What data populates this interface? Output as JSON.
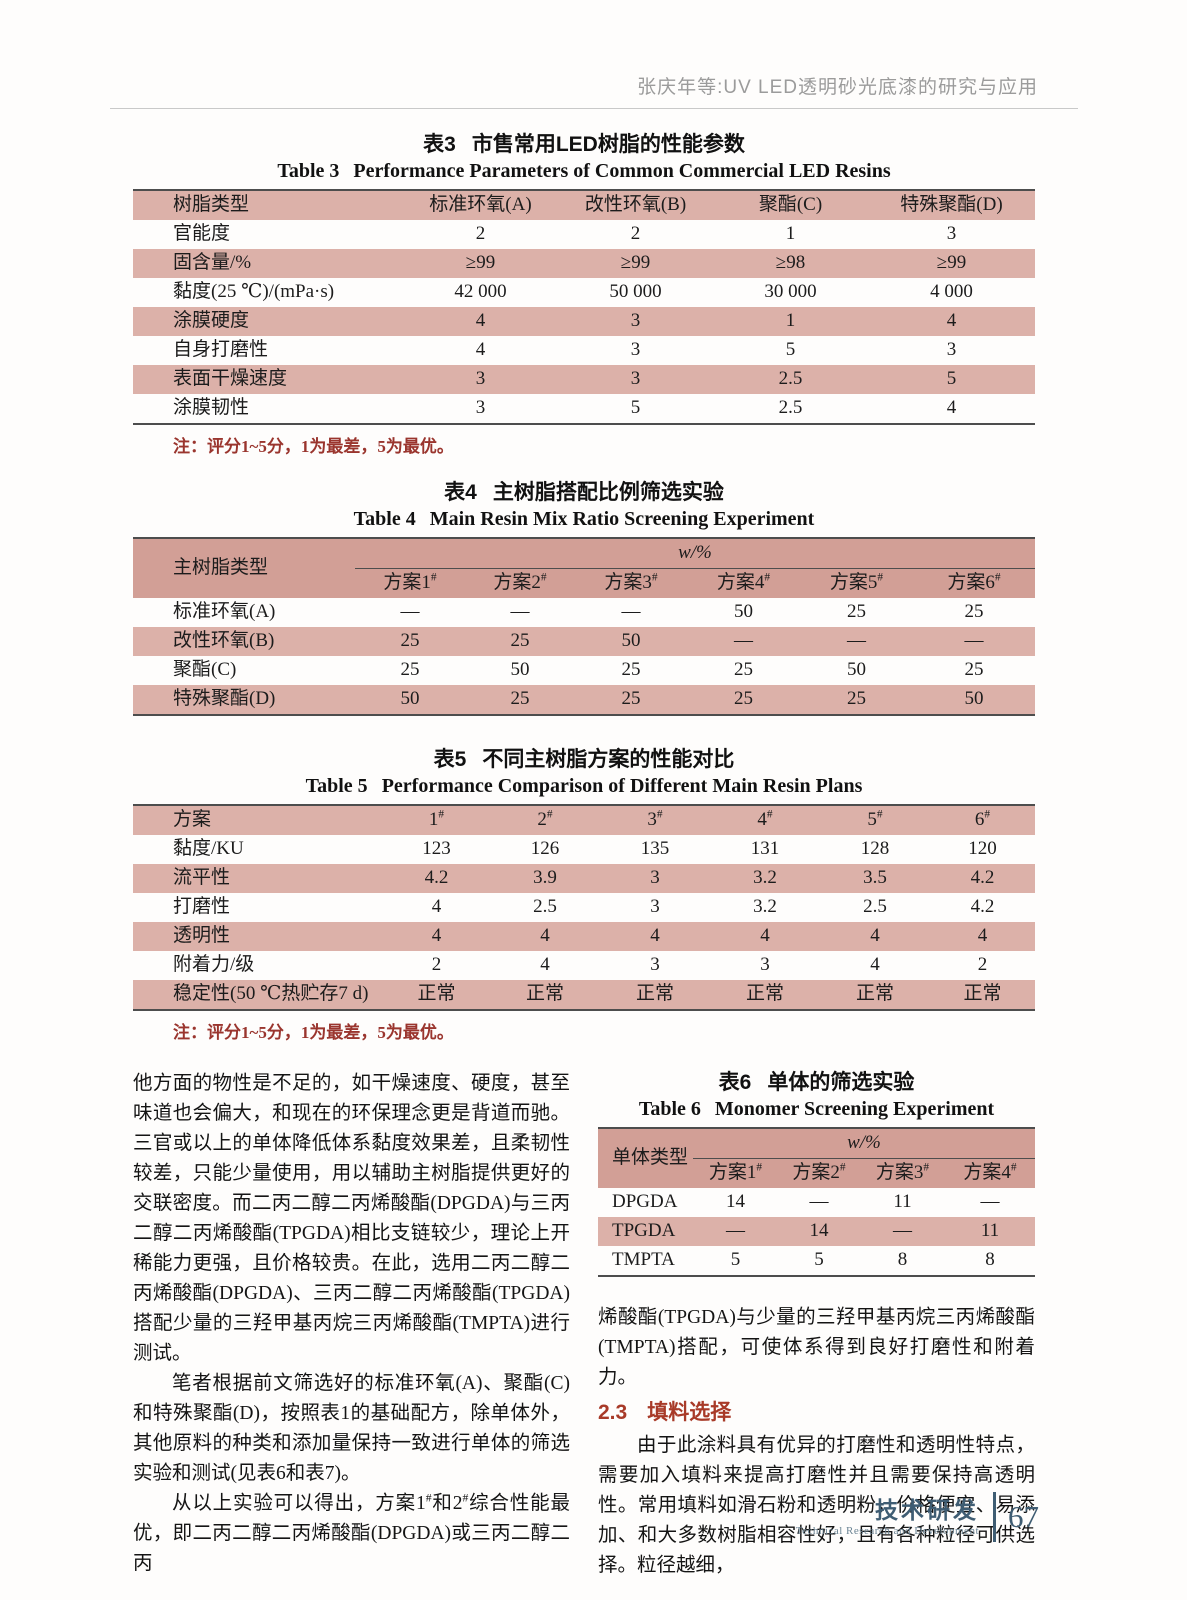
{
  "page_header": {
    "title": "张庆年等:UV LED透明砂光底漆的研究与应用"
  },
  "colors": {
    "row_pink": "#dcb1a9",
    "header_band_pink": "#d29f96",
    "note_red": "#9a352e",
    "section_heading_red": "#a83a28",
    "footer_blue": "#3f5d73",
    "running_head_gray": "#9b9b9b"
  },
  "tables": {
    "table3": {
      "zh_label": "表3",
      "zh_title": "市售常用LED树脂的性能参数",
      "en_label": "Table 3",
      "en_title": "Performance Parameters of Common Commercial LED Resins",
      "header": [
        "树脂类型",
        "标准环氧(A)",
        "改性环氧(B)",
        "聚酯(C)",
        "特殊聚酯(D)"
      ],
      "rows": [
        [
          "官能度",
          "2",
          "2",
          "1",
          "3"
        ],
        [
          "固含量/%",
          "≥99",
          "≥99",
          "≥98",
          "≥99"
        ],
        [
          "黏度(25 ℃)/(mPa·s)",
          "42 000",
          "50 000",
          "30 000",
          "4 000"
        ],
        [
          "涂膜硬度",
          "4",
          "3",
          "1",
          "4"
        ],
        [
          "自身打磨性",
          "4",
          "3",
          "5",
          "3"
        ],
        [
          "表面干燥速度",
          "3",
          "3",
          "2.5",
          "5"
        ],
        [
          "涂膜韧性",
          "3",
          "5",
          "2.5",
          "4"
        ]
      ],
      "note": "注：评分1~5分，1为最差，5为最优。"
    },
    "table4": {
      "zh_label": "表4",
      "zh_title": "主树脂搭配比例筛选实验",
      "en_label": "Table 4",
      "en_title": "Main Resin Mix Ratio Screening Experiment",
      "stub": "主树脂类型",
      "span_label": "w/%",
      "plans": [
        "方案1#",
        "方案2#",
        "方案3#",
        "方案4#",
        "方案5#",
        "方案6#"
      ],
      "rows": [
        [
          "标准环氧(A)",
          "—",
          "—",
          "—",
          "50",
          "25",
          "25"
        ],
        [
          "改性环氧(B)",
          "25",
          "25",
          "50",
          "—",
          "—",
          "—"
        ],
        [
          "聚酯(C)",
          "25",
          "50",
          "25",
          "25",
          "50",
          "25"
        ],
        [
          "特殊聚酯(D)",
          "50",
          "25",
          "25",
          "25",
          "25",
          "50"
        ]
      ]
    },
    "table5": {
      "zh_label": "表5",
      "zh_title": "不同主树脂方案的性能对比",
      "en_label": "Table 5",
      "en_title": "Performance Comparison of Different Main Resin Plans",
      "header": [
        "方案",
        "1#",
        "2#",
        "3#",
        "4#",
        "5#",
        "6#"
      ],
      "rows": [
        [
          "黏度/KU",
          "123",
          "126",
          "135",
          "131",
          "128",
          "120"
        ],
        [
          "流平性",
          "4.2",
          "3.9",
          "3",
          "3.2",
          "3.5",
          "4.2"
        ],
        [
          "打磨性",
          "4",
          "2.5",
          "3",
          "3.2",
          "2.5",
          "4.2"
        ],
        [
          "透明性",
          "4",
          "4",
          "4",
          "4",
          "4",
          "4"
        ],
        [
          "附着力/级",
          "2",
          "4",
          "3",
          "3",
          "4",
          "2"
        ],
        [
          "稳定性(50 ℃热贮存7 d)",
          "正常",
          "正常",
          "正常",
          "正常",
          "正常",
          "正常"
        ]
      ],
      "note": "注：评分1~5分，1为最差，5为最优。"
    },
    "table6": {
      "zh_label": "表6",
      "zh_title": "单体的筛选实验",
      "en_label": "Table 6",
      "en_title": "Monomer Screening Experiment",
      "stub": "单体类型",
      "span_label": "w/%",
      "plans": [
        "方案1#",
        "方案2#",
        "方案3#",
        "方案4#"
      ],
      "rows": [
        [
          "DPGDA",
          "14",
          "—",
          "11",
          "—"
        ],
        [
          "TPGDA",
          "—",
          "14",
          "—",
          "11"
        ],
        [
          "TMPTA",
          "5",
          "5",
          "8",
          "8"
        ]
      ]
    }
  },
  "body": {
    "left": {
      "p1": "他方面的物性是不足的，如干燥速度、硬度，甚至味道也会偏大，和现在的环保理念更是背道而驰。三官或以上的单体降低体系黏度效果差，且柔韧性较差，只能少量使用，用以辅助主树脂提供更好的交联密度。而二丙二醇二丙烯酸酯(DPGDA)与三丙二醇二丙烯酸酯(TPGDA)相比支链较少，理论上开稀能力更强，且价格较贵。在此，选用二丙二醇二丙烯酸酯(DPGDA)、三丙二醇二丙烯酸酯(TPGDA)搭配少量的三羟甲基丙烷三丙烯酸酯(TMPTA)进行测试。",
      "p2": "笔者根据前文筛选好的标准环氧(A)、聚酯(C)和特殊聚酯(D)，按照表1的基础配方，除单体外，其他原料的种类和添加量保持一致进行单体的筛选实验和测试(见表6和表7)。",
      "p3": "从以上实验可以得出，方案1#和2#综合性能最优，即二丙二醇二丙烯酸酯(DPGDA)或三丙二醇二丙"
    },
    "right": {
      "p1": "烯酸酯(TPGDA)与少量的三羟甲基丙烷三丙烯酸酯(TMPTA)搭配，可使体系得到良好打磨性和附着力。",
      "heading_num": "2.3",
      "heading_text": "填料选择",
      "p2": "由于此涂料具有优异的打磨性和透明性特点，需要加入填料来提高打磨性并且需要保持高透明性。常用填料如滑石粉和透明粉，价格便宜、易添加、和大多数树脂相容性好，且有各种粒径可供选择。粒径越细，"
    }
  },
  "footer": {
    "zh": "技术研发",
    "en": "Technical Research and Development",
    "page_number": "67"
  }
}
